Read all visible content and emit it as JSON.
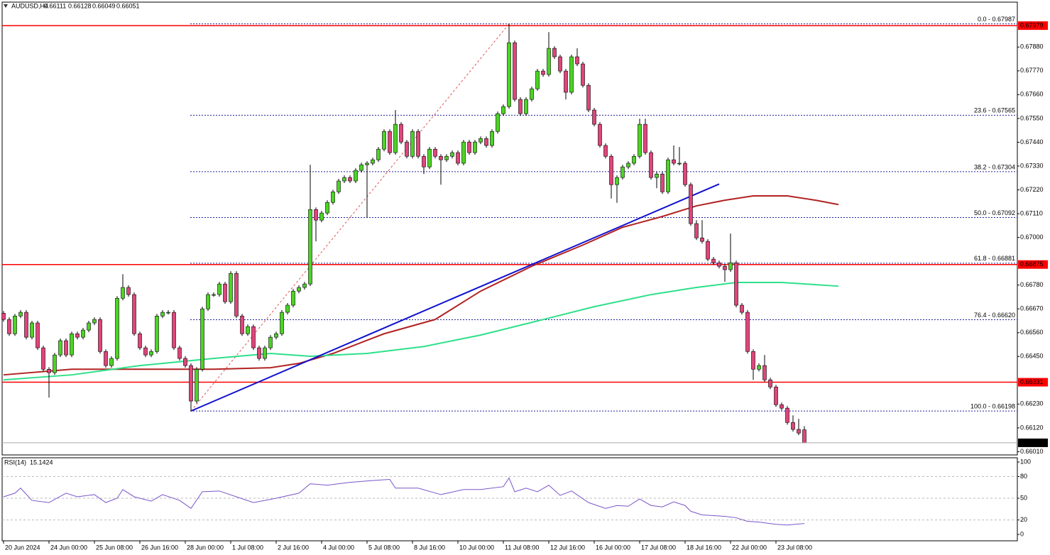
{
  "chart_data": {
    "type": "candlestick",
    "title": "AUDUSD,H4",
    "categories": [
      "20 Jun 2024",
      null,
      null,
      null,
      null,
      null,
      null,
      null,
      "24 Jun 00:00",
      null,
      null,
      null,
      null,
      null,
      null,
      null,
      "25 Jun 08:00",
      null,
      null,
      null,
      null,
      null,
      null,
      null,
      "26 Jun 16:00",
      null,
      null,
      null,
      null,
      null,
      null,
      null,
      "28 Jun 00:00",
      null,
      null,
      null,
      null,
      null,
      null,
      null,
      "1 Jul 08:00",
      null,
      null,
      null,
      null,
      null,
      null,
      null,
      "2 Jul 16:00",
      null,
      null,
      null,
      null,
      null,
      null,
      null,
      "4 Jul 00:00",
      null,
      null,
      null,
      null,
      null,
      null,
      null,
      "5 Jul 08:00",
      null,
      null,
      null,
      null,
      null,
      null,
      null,
      "8 Jul 16:00",
      null,
      null,
      null,
      null,
      null,
      null,
      null,
      "10 Jul 00:00",
      null,
      null,
      null,
      null,
      null,
      null,
      null,
      "11 Jul 08:00",
      null,
      null,
      null,
      null,
      null,
      null,
      null,
      "12 Jul 16:00",
      null,
      null,
      null,
      null,
      null,
      null,
      null,
      "16 Jul 00:00",
      null,
      null,
      null,
      null,
      null,
      null,
      null,
      "17 Jul 08:00",
      null,
      null,
      null,
      null,
      null,
      null,
      null,
      "18 Jul 16:00",
      null,
      null,
      null,
      null,
      null,
      null,
      null,
      "22 Jul 00:00",
      null,
      null,
      null,
      null,
      null,
      null,
      null,
      "23 Jul 08:00",
      null,
      null,
      null,
      null,
      null
    ],
    "open": [
      0.6665,
      0.66621,
      0.66555,
      0.66637,
      0.66654,
      0.66539,
      0.66605,
      0.6649,
      0.66391,
      0.66375,
      0.66457,
      0.66523,
      0.66457,
      0.66555,
      0.66539,
      0.66572,
      0.66605,
      0.66621,
      0.66473,
      0.66408,
      0.66441,
      0.66719,
      0.66769,
      0.66736,
      0.66555,
      0.6649,
      0.66457,
      0.66473,
      0.66637,
      0.66654,
      0.66654,
      0.6649,
      0.66441,
      0.66408,
      0.66244,
      0.66391,
      0.6667,
      0.66736,
      0.66736,
      0.66785,
      0.66703,
      0.66834,
      0.66637,
      0.66555,
      0.66588,
      0.6649,
      0.66441,
      0.6649,
      0.66539,
      0.66555,
      0.66654,
      0.66687,
      0.66752,
      0.66769,
      0.66785,
      0.67129,
      0.6708,
      0.67113,
      0.67162,
      0.67211,
      0.67261,
      0.67277,
      0.67261,
      0.6731,
      0.67336,
      0.67343,
      0.67359,
      0.67408,
      0.6749,
      0.67392,
      0.67523,
      0.67441,
      0.67375,
      0.6749,
      0.67375,
      0.67326,
      0.67408,
      0.67375,
      0.67359,
      0.67375,
      0.67392,
      0.67343,
      0.67441,
      0.67392,
      0.67441,
      0.67457,
      0.67425,
      0.6749,
      0.67572,
      0.67605,
      0.679,
      0.67638,
      0.67572,
      0.67638,
      0.67687,
      0.67769,
      0.67753,
      0.67874,
      0.67835,
      0.67769,
      0.67671,
      0.67835,
      0.67802,
      0.67703,
      0.67589,
      0.67523,
      0.67425,
      0.67375,
      0.67244,
      0.67277,
      0.67326,
      0.67343,
      0.67375,
      0.67523,
      0.67392,
      0.67277,
      0.67293,
      0.67211,
      0.67359,
      0.67343,
      0.67343,
      0.67244,
      0.67064,
      0.66998,
      0.66982,
      0.669,
      0.66883,
      0.66867,
      0.66851,
      0.66883,
      0.66687,
      0.66654,
      0.66473,
      0.66391,
      0.66408,
      0.66342,
      0.66309,
      0.66227,
      0.66211,
      0.66145,
      0.66113,
      0.66111
    ],
    "high": [
      0.6666,
      0.66631,
      0.66647,
      0.66664,
      0.66664,
      0.66615,
      0.66615,
      0.665,
      0.66401,
      0.66467,
      0.66533,
      0.66533,
      0.66565,
      0.66565,
      0.66582,
      0.66615,
      0.66631,
      0.66631,
      0.66483,
      0.66451,
      0.66729,
      0.6683,
      0.66779,
      0.66746,
      0.66565,
      0.665,
      0.66483,
      0.66647,
      0.66664,
      0.66664,
      0.66664,
      0.665,
      0.66451,
      0.66418,
      0.66401,
      0.6668,
      0.66746,
      0.66746,
      0.66795,
      0.66795,
      0.66844,
      0.66844,
      0.66647,
      0.66598,
      0.66598,
      0.665,
      0.665,
      0.66549,
      0.66565,
      0.66664,
      0.66697,
      0.66762,
      0.66779,
      0.66795,
      0.67336,
      0.67139,
      0.67123,
      0.67172,
      0.67221,
      0.67271,
      0.67287,
      0.67287,
      0.6732,
      0.67346,
      0.67353,
      0.67369,
      0.67418,
      0.675,
      0.675,
      0.67589,
      0.67533,
      0.67451,
      0.675,
      0.675,
      0.67385,
      0.67418,
      0.67418,
      0.67385,
      0.67385,
      0.67402,
      0.67402,
      0.67451,
      0.67451,
      0.67451,
      0.67467,
      0.67467,
      0.675,
      0.67582,
      0.67615,
      0.67987,
      0.6791,
      0.67648,
      0.67648,
      0.67697,
      0.67779,
      0.67779,
      0.67949,
      0.67884,
      0.67845,
      0.67779,
      0.67845,
      0.67874,
      0.67812,
      0.67713,
      0.67599,
      0.67533,
      0.67435,
      0.67385,
      0.67287,
      0.67336,
      0.67353,
      0.67385,
      0.67549,
      0.67549,
      0.67402,
      0.67303,
      0.67303,
      0.67369,
      0.67425,
      0.67418,
      0.67353,
      0.67254,
      0.6708,
      0.6708,
      0.66992,
      0.6691,
      0.66893,
      0.66877,
      0.67018,
      0.66893,
      0.66697,
      0.66664,
      0.66483,
      0.66418,
      0.66457,
      0.66352,
      0.66319,
      0.66237,
      0.66221,
      0.66178,
      0.66162,
      0.66128
    ],
    "low": [
      0.66611,
      0.66545,
      0.66545,
      0.66627,
      0.66529,
      0.66529,
      0.6648,
      0.66381,
      0.6626,
      0.66365,
      0.66447,
      0.66447,
      0.66447,
      0.66529,
      0.66529,
      0.66562,
      0.66595,
      0.66463,
      0.66398,
      0.66398,
      0.66431,
      0.66709,
      0.66726,
      0.66545,
      0.6648,
      0.66447,
      0.66447,
      0.66463,
      0.66627,
      0.66644,
      0.6648,
      0.66431,
      0.66398,
      0.66198,
      0.66234,
      0.66381,
      0.6666,
      0.66726,
      0.66726,
      0.66693,
      0.66693,
      0.66627,
      0.66545,
      0.66545,
      0.6648,
      0.66431,
      0.66431,
      0.6648,
      0.66529,
      0.66545,
      0.66644,
      0.66677,
      0.66742,
      0.66759,
      0.66775,
      0.66982,
      0.6707,
      0.67103,
      0.67152,
      0.67201,
      0.67251,
      0.67251,
      0.67251,
      0.673,
      0.67092,
      0.67333,
      0.67349,
      0.67398,
      0.67382,
      0.67382,
      0.67431,
      0.67365,
      0.67365,
      0.67365,
      0.67293,
      0.67316,
      0.67365,
      0.67244,
      0.67349,
      0.67365,
      0.67333,
      0.67333,
      0.67382,
      0.67382,
      0.67431,
      0.67415,
      0.67415,
      0.6748,
      0.67562,
      0.67595,
      0.67628,
      0.67562,
      0.67562,
      0.67628,
      0.67677,
      0.67743,
      0.67743,
      0.67825,
      0.67759,
      0.67638,
      0.67661,
      0.67792,
      0.67693,
      0.67579,
      0.67513,
      0.67415,
      0.67365,
      0.6718,
      0.6716,
      0.67267,
      0.67316,
      0.67333,
      0.67365,
      0.67382,
      0.67267,
      0.67228,
      0.67201,
      0.67201,
      0.67333,
      0.67333,
      0.67234,
      0.67054,
      0.66988,
      0.66972,
      0.6689,
      0.66873,
      0.66857,
      0.66795,
      0.66841,
      0.66677,
      0.66644,
      0.66463,
      0.66342,
      0.66381,
      0.66332,
      0.66299,
      0.66217,
      0.66201,
      0.66135,
      0.66103,
      0.66086,
      0.66049
    ],
    "close": [
      0.66621,
      0.66555,
      0.66637,
      0.66654,
      0.66539,
      0.66605,
      0.6649,
      0.66391,
      0.66375,
      0.66457,
      0.66523,
      0.66457,
      0.66555,
      0.66539,
      0.66572,
      0.66605,
      0.66621,
      0.66473,
      0.66408,
      0.66441,
      0.66719,
      0.66769,
      0.66736,
      0.66555,
      0.6649,
      0.66457,
      0.66473,
      0.66637,
      0.66654,
      0.66654,
      0.6649,
      0.66441,
      0.66408,
      0.66244,
      0.66391,
      0.6667,
      0.66736,
      0.66736,
      0.66785,
      0.66703,
      0.66834,
      0.66637,
      0.66555,
      0.66588,
      0.6649,
      0.66441,
      0.6649,
      0.66539,
      0.66555,
      0.66654,
      0.66687,
      0.66752,
      0.66769,
      0.66785,
      0.67129,
      0.6708,
      0.67113,
      0.67162,
      0.67211,
      0.67261,
      0.67277,
      0.67261,
      0.6731,
      0.67336,
      0.67343,
      0.67359,
      0.67408,
      0.6749,
      0.67392,
      0.67523,
      0.67441,
      0.67375,
      0.6749,
      0.67375,
      0.67326,
      0.67408,
      0.67375,
      0.67359,
      0.67375,
      0.67392,
      0.67343,
      0.67441,
      0.67392,
      0.67441,
      0.67457,
      0.67425,
      0.6749,
      0.67572,
      0.67605,
      0.679,
      0.67638,
      0.67572,
      0.67638,
      0.67687,
      0.67769,
      0.67753,
      0.67874,
      0.67835,
      0.67769,
      0.67671,
      0.67835,
      0.67802,
      0.67703,
      0.67589,
      0.67523,
      0.67425,
      0.67375,
      0.67244,
      0.67277,
      0.67326,
      0.67343,
      0.67375,
      0.67523,
      0.67392,
      0.67277,
      0.67293,
      0.67211,
      0.67359,
      0.67343,
      0.67343,
      0.67244,
      0.67064,
      0.66998,
      0.66982,
      0.669,
      0.66883,
      0.66867,
      0.66851,
      0.66883,
      0.66687,
      0.66654,
      0.66473,
      0.66391,
      0.66408,
      0.66342,
      0.66309,
      0.66227,
      0.66211,
      0.66145,
      0.66113,
      0.66096,
      0.66051
    ],
    "up_color": "#4cd424",
    "down_color": "#e0457b",
    "ylim": [
      0.65995,
      0.68081
    ],
    "yticks": [
      {
        "value": 0.6788,
        "label": "0.67880"
      },
      {
        "value": 0.6777,
        "label": "0.67770"
      },
      {
        "value": 0.6766,
        "label": "0.67660"
      },
      {
        "value": 0.6755,
        "label": "0.67550"
      },
      {
        "value": 0.6744,
        "label": "0.67440"
      },
      {
        "value": 0.6733,
        "label": "0.67330"
      },
      {
        "value": 0.6722,
        "label": "0.67220"
      },
      {
        "value": 0.6711,
        "label": "0.67110"
      },
      {
        "value": 0.67,
        "label": "0.67000"
      },
      {
        "value": 0.6678,
        "label": "0.66780"
      },
      {
        "value": 0.6667,
        "label": "0.66670"
      },
      {
        "value": 0.6656,
        "label": "0.66560"
      },
      {
        "value": 0.6645,
        "label": "0.66450"
      },
      {
        "value": 0.6623,
        "label": "0.66230"
      },
      {
        "value": 0.6612,
        "label": "0.66120"
      },
      {
        "value": 0.6601,
        "label": "0.66010"
      }
    ],
    "moving_averages": [
      {
        "color": "#b22222",
        "x": [
          0,
          12,
          24,
          37,
          47,
          52,
          58,
          67,
          76,
          84,
          93,
          102,
          109,
          116,
          122,
          127,
          132,
          138,
          143,
          147
        ],
        "values": [
          0.66365,
          0.66391,
          0.66391,
          0.66391,
          0.66398,
          0.66418,
          0.66464,
          0.66555,
          0.66621,
          0.66752,
          0.66867,
          0.66965,
          0.67047,
          0.67097,
          0.67146,
          0.67172,
          0.67192,
          0.67192,
          0.67172,
          0.67152
        ]
      },
      {
        "color": "#2ee08a",
        "x": [
          0,
          12,
          24,
          37,
          47,
          54,
          64,
          74,
          84,
          94,
          104,
          114,
          122,
          129,
          137,
          147
        ],
        "values": [
          0.66342,
          0.66365,
          0.66408,
          0.66441,
          0.66464,
          0.66451,
          0.66464,
          0.66496,
          0.66549,
          0.66614,
          0.6668,
          0.66736,
          0.66769,
          0.66792,
          0.66792,
          0.66775
        ]
      }
    ],
    "trendlines": [
      {
        "color": "#1010d0",
        "dashed": false,
        "x": [
          33,
          126
        ],
        "values": [
          0.66198,
          0.67247
        ]
      },
      {
        "color": "#e05555",
        "dashed": true,
        "x": [
          33,
          89
        ],
        "values": [
          0.66198,
          0.67987
        ]
      }
    ],
    "hlines": [
      {
        "value": 0.67979,
        "color": "#ff0000"
      },
      {
        "value": 0.66875,
        "color": "#ff0000"
      },
      {
        "value": 0.66331,
        "color": "#ff0000"
      }
    ],
    "fib_color": "#1f1f9a",
    "fib_levels": [
      {
        "value": 0.67987,
        "label": "0.0 - 0.67987"
      },
      {
        "value": 0.67565,
        "label": "23.6 - 0.67565"
      },
      {
        "value": 0.67304,
        "label": "38.2 - 0.67304"
      },
      {
        "value": 0.67092,
        "label": "50.0 - 0.67092"
      },
      {
        "value": 0.66881,
        "label": "61.8 - 0.66881"
      },
      {
        "value": 0.6662,
        "label": "76.4 - 0.66620"
      },
      {
        "value": 0.66198,
        "label": "100.0 - 0.66198"
      }
    ],
    "rsi": {
      "title": "RSI(14)",
      "color": "#7b55c9",
      "ylim": [
        -8.8,
        105.9
      ],
      "yticks": [
        100,
        80,
        50,
        20,
        0
      ],
      "x": [
        0,
        2,
        3,
        5,
        8,
        11,
        13,
        16,
        18,
        20,
        21,
        23,
        26,
        28,
        31,
        33,
        35,
        38,
        41,
        44,
        48,
        52,
        54,
        57,
        61,
        66,
        68,
        69,
        73,
        77,
        81,
        84,
        88,
        89,
        90,
        92,
        94,
        96,
        98,
        100,
        103,
        106,
        108,
        110,
        112,
        114,
        116,
        118,
        120,
        121,
        123,
        127,
        129,
        131,
        133,
        136,
        138,
        141
      ],
      "values": [
        52,
        57,
        64,
        47,
        44,
        57,
        52,
        55,
        44,
        50,
        62,
        52,
        46,
        55,
        47,
        36,
        59,
        60,
        52,
        44,
        50,
        57,
        70,
        68,
        72,
        75,
        76,
        64,
        64,
        55,
        62,
        62,
        66,
        78,
        59,
        64,
        59,
        68,
        54,
        60,
        44,
        36,
        40,
        39,
        49,
        40,
        38,
        45,
        40,
        32,
        27,
        25,
        23,
        18,
        17,
        14,
        13,
        15.1424
      ]
    }
  }
}
